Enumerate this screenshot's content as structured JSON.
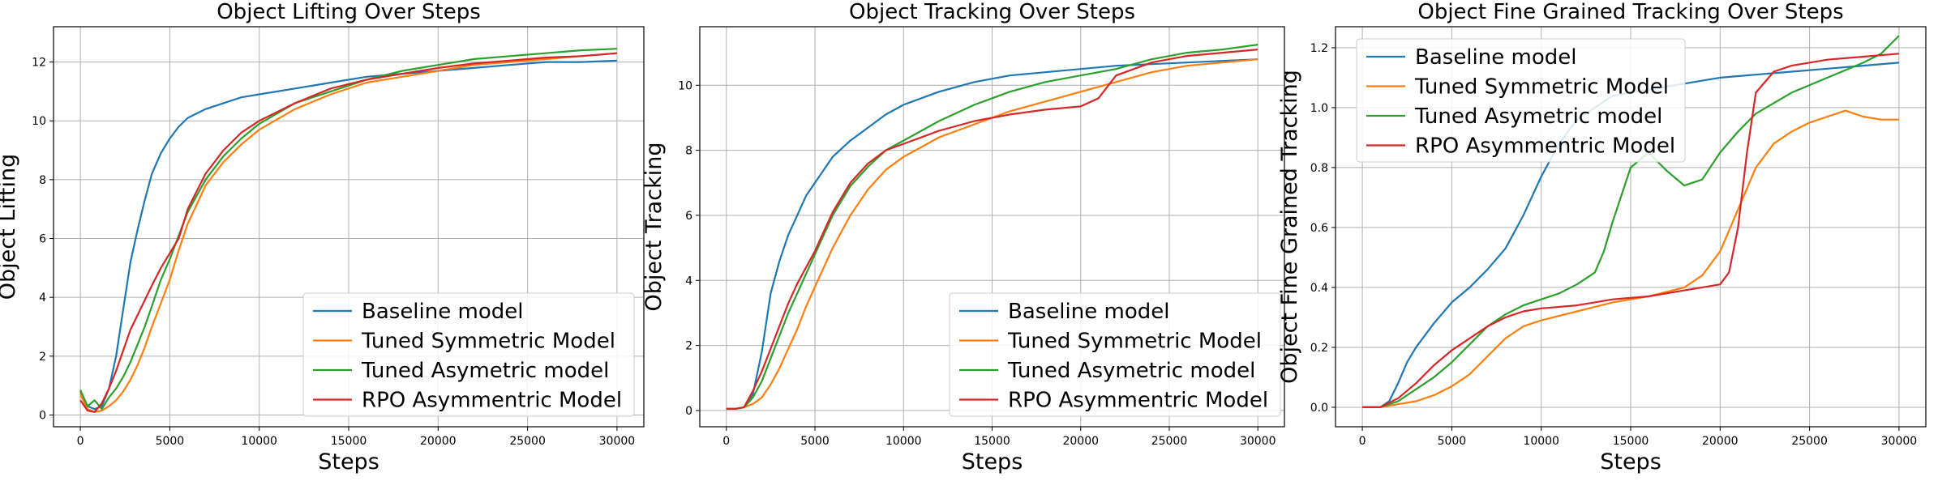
{
  "colors": {
    "baseline": "#1f77b4",
    "symmetric": "#ff7f0e",
    "asymetric": "#2ca02c",
    "rpo": "#d62728",
    "grid": "#b0b0b0"
  },
  "chart_data": [
    {
      "type": "line",
      "title": "Object Lifting Over Steps",
      "xlabel": "Steps",
      "ylabel": "Object Lifting",
      "xlim": [
        -1500,
        31500
      ],
      "ylim": [
        -0.4,
        13.2
      ],
      "xticks": [
        0,
        5000,
        10000,
        15000,
        20000,
        25000,
        30000
      ],
      "yticks": [
        0,
        2,
        4,
        6,
        8,
        10,
        12
      ],
      "grid": true,
      "legend_position": "lower-right",
      "series": [
        {
          "name": "Baseline model",
          "color_key": "baseline",
          "x": [
            0,
            400,
            800,
            1200,
            1600,
            2000,
            2400,
            2800,
            3200,
            3600,
            4000,
            4500,
            5000,
            5500,
            6000,
            7000,
            8000,
            9000,
            10000,
            12000,
            14000,
            16000,
            18000,
            20000,
            22000,
            24000,
            26000,
            28000,
            30000
          ],
          "y": [
            0.8,
            0.3,
            0.2,
            0.3,
            0.9,
            2.0,
            3.6,
            5.2,
            6.3,
            7.3,
            8.2,
            8.9,
            9.4,
            9.8,
            10.1,
            10.4,
            10.6,
            10.8,
            10.9,
            11.1,
            11.3,
            11.5,
            11.6,
            11.7,
            11.8,
            11.9,
            12.0,
            12.0,
            12.05
          ]
        },
        {
          "name": "Tuned Symmetric Model",
          "color_key": "symmetric",
          "x": [
            0,
            400,
            800,
            1200,
            1600,
            2000,
            2400,
            2800,
            3200,
            3600,
            4000,
            4500,
            5000,
            5500,
            6000,
            7000,
            8000,
            9000,
            10000,
            12000,
            14000,
            16000,
            18000,
            20000,
            22000,
            24000,
            26000,
            28000,
            30000
          ],
          "y": [
            0.7,
            0.2,
            0.1,
            0.15,
            0.3,
            0.5,
            0.8,
            1.2,
            1.7,
            2.3,
            3.0,
            3.8,
            4.6,
            5.6,
            6.5,
            7.8,
            8.6,
            9.2,
            9.7,
            10.4,
            10.9,
            11.3,
            11.5,
            11.7,
            11.9,
            12.0,
            12.1,
            12.2,
            12.3
          ]
        },
        {
          "name": "Tuned Asymetric model",
          "color_key": "asymetric",
          "x": [
            0,
            400,
            800,
            1200,
            1600,
            2000,
            2400,
            2800,
            3200,
            3600,
            4000,
            4500,
            5000,
            5500,
            6000,
            7000,
            8000,
            9000,
            10000,
            12000,
            14000,
            16000,
            18000,
            20000,
            22000,
            24000,
            26000,
            28000,
            30000
          ],
          "y": [
            0.85,
            0.3,
            0.5,
            0.2,
            0.6,
            0.9,
            1.3,
            1.8,
            2.4,
            3.0,
            3.7,
            4.6,
            5.3,
            6.1,
            6.9,
            8.0,
            8.8,
            9.4,
            9.9,
            10.6,
            11.0,
            11.4,
            11.7,
            11.9,
            12.1,
            12.2,
            12.3,
            12.4,
            12.45
          ]
        },
        {
          "name": "RPO Asymmentric Model",
          "color_key": "rpo",
          "x": [
            0,
            400,
            800,
            1200,
            1600,
            2000,
            2400,
            2800,
            3200,
            3600,
            4000,
            4500,
            5000,
            5500,
            6000,
            7000,
            8000,
            9000,
            10000,
            12000,
            14000,
            16000,
            18000,
            20000,
            22000,
            24000,
            26000,
            28000,
            30000
          ],
          "y": [
            0.5,
            0.15,
            0.1,
            0.4,
            0.9,
            1.5,
            2.2,
            2.9,
            3.4,
            3.9,
            4.4,
            5.0,
            5.5,
            6.0,
            7.0,
            8.2,
            9.0,
            9.6,
            10.0,
            10.6,
            11.1,
            11.4,
            11.6,
            11.8,
            11.95,
            12.05,
            12.15,
            12.2,
            12.3
          ]
        }
      ]
    },
    {
      "type": "line",
      "title": "Object Tracking Over Steps",
      "xlabel": "Steps",
      "ylabel": "Object Tracking",
      "xlim": [
        -1500,
        31500
      ],
      "ylim": [
        -0.5,
        11.8
      ],
      "xticks": [
        0,
        5000,
        10000,
        15000,
        20000,
        25000,
        30000
      ],
      "yticks": [
        0,
        2,
        4,
        6,
        8,
        10
      ],
      "grid": true,
      "legend_position": "lower-right",
      "series": [
        {
          "name": "Baseline model",
          "color_key": "baseline",
          "x": [
            0,
            500,
            1000,
            1500,
            2000,
            2500,
            3000,
            3500,
            4000,
            4500,
            5000,
            5500,
            6000,
            7000,
            8000,
            9000,
            10000,
            12000,
            14000,
            16000,
            18000,
            20000,
            22000,
            24000,
            26000,
            28000,
            30000
          ],
          "y": [
            0.05,
            0.05,
            0.1,
            0.5,
            1.8,
            3.6,
            4.6,
            5.4,
            6.0,
            6.6,
            7.0,
            7.4,
            7.8,
            8.3,
            8.7,
            9.1,
            9.4,
            9.8,
            10.1,
            10.3,
            10.4,
            10.5,
            10.6,
            10.65,
            10.7,
            10.75,
            10.8
          ]
        },
        {
          "name": "Tuned Symmetric Model",
          "color_key": "symmetric",
          "x": [
            0,
            500,
            1000,
            1500,
            2000,
            2500,
            3000,
            3500,
            4000,
            4500,
            5000,
            5500,
            6000,
            7000,
            8000,
            9000,
            10000,
            12000,
            14000,
            16000,
            18000,
            20000,
            22000,
            24000,
            26000,
            28000,
            30000
          ],
          "y": [
            0.05,
            0.05,
            0.1,
            0.2,
            0.4,
            0.8,
            1.3,
            1.9,
            2.5,
            3.2,
            3.8,
            4.4,
            5.0,
            6.0,
            6.8,
            7.4,
            7.8,
            8.4,
            8.8,
            9.2,
            9.5,
            9.8,
            10.1,
            10.4,
            10.6,
            10.7,
            10.8
          ]
        },
        {
          "name": "Tuned Asymetric model",
          "color_key": "asymetric",
          "x": [
            0,
            500,
            1000,
            1500,
            2000,
            2500,
            3000,
            3500,
            4000,
            4500,
            5000,
            5500,
            6000,
            7000,
            8000,
            9000,
            10000,
            12000,
            14000,
            16000,
            18000,
            20000,
            22000,
            24000,
            26000,
            28000,
            30000
          ],
          "y": [
            0.05,
            0.05,
            0.1,
            0.4,
            0.9,
            1.6,
            2.3,
            3.0,
            3.6,
            4.2,
            4.8,
            5.4,
            6.0,
            6.9,
            7.5,
            8.0,
            8.3,
            8.9,
            9.4,
            9.8,
            10.1,
            10.3,
            10.5,
            10.8,
            11.0,
            11.1,
            11.25
          ]
        },
        {
          "name": "RPO Asymmentric Model",
          "color_key": "rpo",
          "x": [
            0,
            500,
            1000,
            1500,
            2000,
            2500,
            3000,
            3500,
            4000,
            4500,
            5000,
            5500,
            6000,
            7000,
            8000,
            9000,
            10000,
            12000,
            14000,
            16000,
            18000,
            20000,
            21000,
            22000,
            24000,
            26000,
            28000,
            30000
          ],
          "y": [
            0.05,
            0.05,
            0.1,
            0.6,
            1.2,
            1.9,
            2.6,
            3.3,
            3.9,
            4.4,
            4.9,
            5.5,
            6.1,
            7.0,
            7.6,
            8.0,
            8.2,
            8.6,
            8.9,
            9.1,
            9.25,
            9.35,
            9.6,
            10.3,
            10.7,
            10.9,
            11.0,
            11.1
          ]
        }
      ]
    },
    {
      "type": "line",
      "title": "Object Fine Grained Tracking Over Steps",
      "xlabel": "Steps",
      "ylabel": "Object Fine Grained Tracking",
      "xlim": [
        -1500,
        31500
      ],
      "ylim": [
        -0.065,
        1.27
      ],
      "xticks": [
        0,
        5000,
        10000,
        15000,
        20000,
        25000,
        30000
      ],
      "yticks": [
        0.0,
        0.2,
        0.4,
        0.6,
        0.8,
        1.0,
        1.2
      ],
      "ytick_labels": [
        "0.0",
        "0.2",
        "0.4",
        "0.6",
        "0.8",
        "1.0",
        "1.2"
      ],
      "grid": true,
      "legend_position": "upper-left",
      "series": [
        {
          "name": "Baseline model",
          "color_key": "baseline",
          "x": [
            0,
            1000,
            1500,
            2000,
            2500,
            3000,
            4000,
            5000,
            6000,
            7000,
            8000,
            9000,
            10000,
            11000,
            12000,
            13000,
            14000,
            15000,
            16000,
            17000,
            18000,
            19000,
            20000,
            22000,
            24000,
            26000,
            28000,
            30000
          ],
          "y": [
            0.0,
            0.0,
            0.02,
            0.08,
            0.15,
            0.2,
            0.28,
            0.35,
            0.4,
            0.46,
            0.53,
            0.64,
            0.77,
            0.88,
            0.96,
            1.0,
            1.04,
            1.05,
            1.06,
            1.07,
            1.08,
            1.09,
            1.1,
            1.11,
            1.12,
            1.13,
            1.14,
            1.15
          ]
        },
        {
          "name": "Tuned Symmetric Model",
          "color_key": "symmetric",
          "x": [
            0,
            1000,
            2000,
            3000,
            4000,
            5000,
            6000,
            7000,
            8000,
            9000,
            10000,
            12000,
            14000,
            16000,
            18000,
            19000,
            20000,
            21000,
            22000,
            23000,
            24000,
            25000,
            26000,
            27000,
            28000,
            29000,
            30000
          ],
          "y": [
            0.0,
            0.0,
            0.01,
            0.02,
            0.04,
            0.07,
            0.11,
            0.17,
            0.23,
            0.27,
            0.29,
            0.32,
            0.35,
            0.37,
            0.4,
            0.44,
            0.52,
            0.66,
            0.8,
            0.88,
            0.92,
            0.95,
            0.97,
            0.99,
            0.97,
            0.96,
            0.96
          ]
        },
        {
          "name": "Tuned Asymetric model",
          "color_key": "asymetric",
          "x": [
            0,
            1000,
            2000,
            3000,
            4000,
            5000,
            6000,
            7000,
            8000,
            9000,
            10000,
            11000,
            12000,
            13000,
            13500,
            14000,
            15000,
            16000,
            17000,
            18000,
            19000,
            20000,
            21000,
            22000,
            24000,
            26000,
            28000,
            29000,
            30000
          ],
          "y": [
            0.0,
            0.0,
            0.02,
            0.06,
            0.1,
            0.15,
            0.21,
            0.27,
            0.31,
            0.34,
            0.36,
            0.38,
            0.41,
            0.45,
            0.52,
            0.62,
            0.8,
            0.85,
            0.79,
            0.74,
            0.76,
            0.85,
            0.92,
            0.98,
            1.05,
            1.1,
            1.15,
            1.18,
            1.24
          ]
        },
        {
          "name": "RPO Asymmentric Model",
          "color_key": "rpo",
          "x": [
            0,
            1000,
            2000,
            3000,
            4000,
            5000,
            6000,
            7000,
            8000,
            9000,
            10000,
            12000,
            14000,
            16000,
            18000,
            19000,
            20000,
            20500,
            21000,
            21500,
            22000,
            23000,
            24000,
            26000,
            28000,
            30000
          ],
          "y": [
            0.0,
            0.0,
            0.03,
            0.08,
            0.14,
            0.19,
            0.23,
            0.27,
            0.3,
            0.32,
            0.33,
            0.34,
            0.36,
            0.37,
            0.39,
            0.4,
            0.41,
            0.45,
            0.6,
            0.85,
            1.05,
            1.12,
            1.14,
            1.16,
            1.17,
            1.18
          ]
        }
      ]
    }
  ]
}
